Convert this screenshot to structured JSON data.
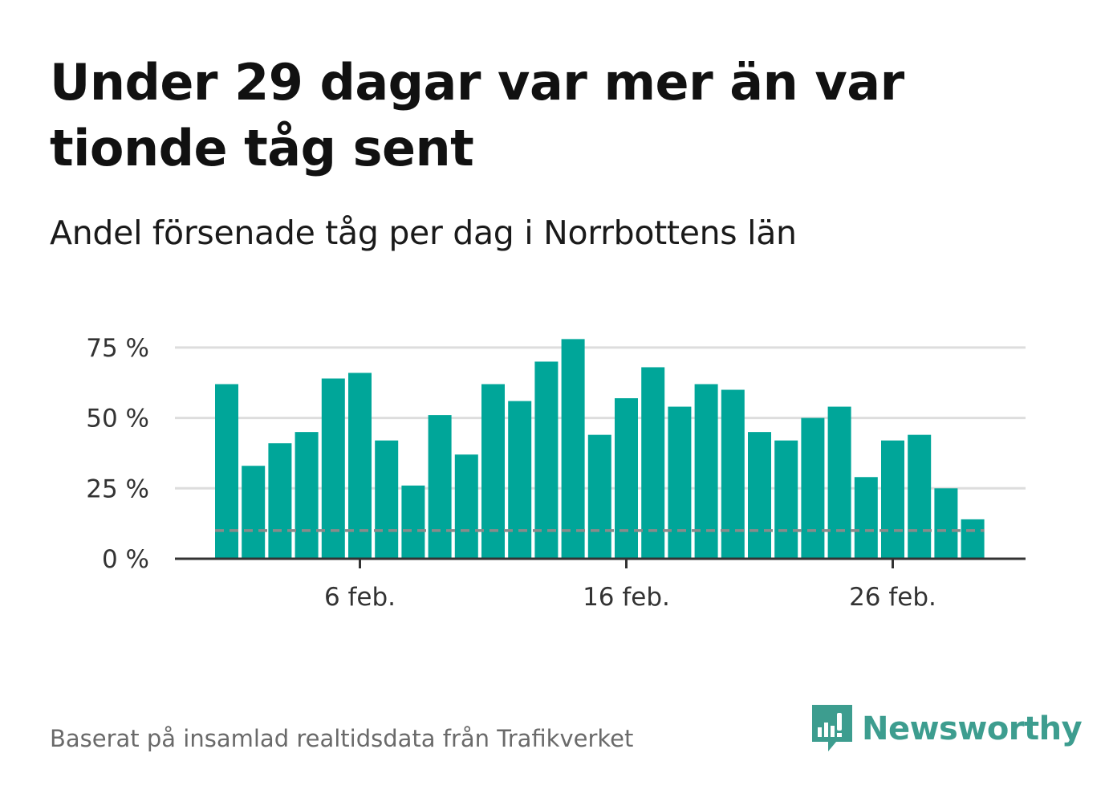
{
  "header": {
    "title": "Under 29 dagar var mer än var tionde tåg sent",
    "subtitle": "Andel försenade tåg per dag i Norrbottens län"
  },
  "footer": {
    "source": "Baserat på insamlad realtidsdata från Trafikverket",
    "brand": "Newsworthy"
  },
  "colors": {
    "bar": "#00a699",
    "reference_line": "#8a8a8a",
    "grid": "#dddddd",
    "axis": "#333333",
    "brand": "#3d9d8f"
  },
  "chart_data": {
    "type": "bar",
    "x_start_day": 1,
    "month_label": "feb.",
    "values": [
      62,
      33,
      41,
      45,
      64,
      66,
      42,
      26,
      51,
      37,
      62,
      56,
      70,
      78,
      44,
      57,
      68,
      54,
      62,
      60,
      45,
      42,
      50,
      54,
      29,
      42,
      44,
      25,
      14
    ],
    "reference_value": 10,
    "ylim": [
      0,
      80
    ],
    "yticks": [
      0,
      25,
      50,
      75
    ],
    "ytick_labels": [
      "0 %",
      "25 %",
      "50 %",
      "75 %"
    ],
    "xticks": [
      {
        "day": 6,
        "label": "6 feb."
      },
      {
        "day": 16,
        "label": "16 feb."
      },
      {
        "day": 26,
        "label": "26 feb."
      }
    ],
    "grid": true,
    "legend": false
  }
}
